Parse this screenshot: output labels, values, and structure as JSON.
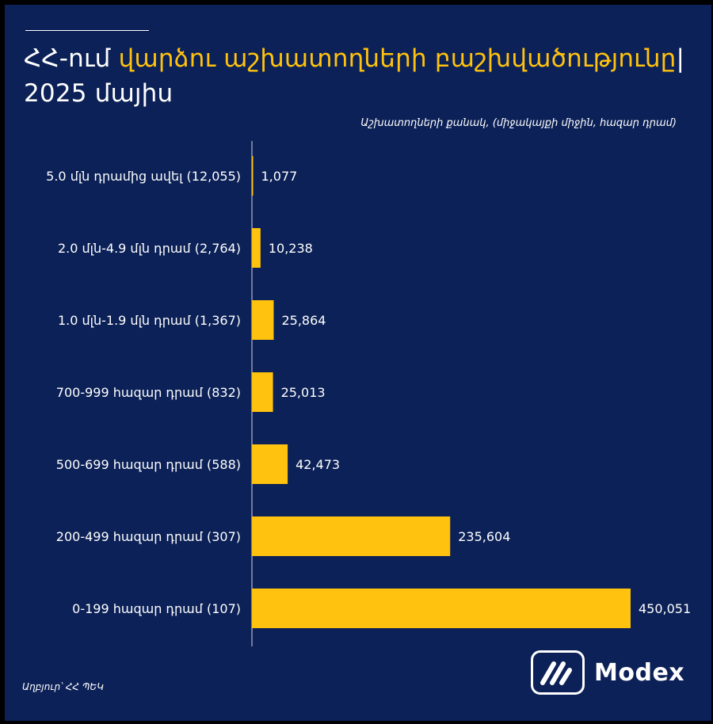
{
  "header": {
    "title_prefix": "ՀՀ-ում ",
    "title_highlight": "վարձու աշխատողների բաշխվածությունը",
    "title_separator": "|",
    "title_line2": "2025 մայիս",
    "subtitle": "Աշխատողների քանակ, (միջակայքի միջին, հազար դրամ)"
  },
  "footer": {
    "source": "Աղբյուր՝ ՀՀ ՊԵԿ",
    "logo_text": "Modex",
    "logo_icon": "modex-logo-icon"
  },
  "colors": {
    "background": "#0c2157",
    "bar": "#ffc20e",
    "text": "#ffffff"
  },
  "chart_data": {
    "type": "bar",
    "orientation": "horizontal",
    "categories": [
      "5.0 մլն դրամից ավել (12,055)",
      "2.0 մլն-4.9 մլն դրամ (2,764)",
      "1.0 մլն-1.9 մլն դրամ  (1,367)",
      "700-999 հազար դրամ  (832)",
      "500-699 հազար դրամ  (588)",
      "200-499 հազար դրամ  (307)",
      "0-199 հազար դրամ  (107)"
    ],
    "values": [
      1077,
      10238,
      25864,
      25013,
      42473,
      235604,
      450051
    ],
    "value_labels": [
      "1,077",
      "10,238",
      "25,864",
      "25,013",
      "42,473",
      "235,604",
      "450,051"
    ],
    "xlim": [
      0,
      450051
    ],
    "grid": false,
    "legend": "none"
  }
}
